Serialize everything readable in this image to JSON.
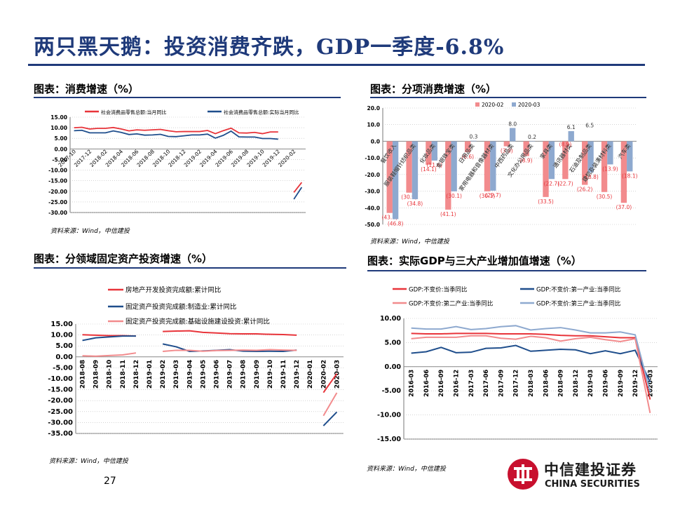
{
  "page": {
    "title": "两只黑天鹅：投资消费齐跌，GDP一季度-6.8%",
    "number": "27",
    "logo_cn": "中信建投证券",
    "logo_en": "CHINA SECURITIES"
  },
  "panels": [
    {
      "title": "图表：消费增速（%）",
      "source": "资料来源：Wind，中信建投"
    },
    {
      "title": "图表：分项消费增速（%）",
      "source": "资料来源：Wind，中信建投"
    },
    {
      "title": "图表：分领域固定资产投资增速（%）",
      "source": "资料来源：Wind，中信建投"
    },
    {
      "title": "图表：实际GDP与三大产业增加值增速（%）",
      "source": "资料来源：Wind，中信建投"
    }
  ],
  "chart_data": [
    {
      "type": "line",
      "title": "",
      "ylim": [
        -30,
        15
      ],
      "yticks": [
        "15.00",
        "10.00",
        "5.00",
        "0.00",
        "-5.00",
        "-10.00",
        "-15.00",
        "-20.00",
        "-25.00",
        "-30.00"
      ],
      "x": [
        "2017-10",
        "2017-11",
        "2017-12",
        "2018-01",
        "2018-02",
        "2018-03",
        "2018-04",
        "2018-05",
        "2018-06",
        "2018-07",
        "2018-08",
        "2018-09",
        "2018-10",
        "2018-11",
        "2018-12",
        "2019-01",
        "2019-02",
        "2019-03",
        "2019-04",
        "2019-05",
        "2019-06",
        "2019-07",
        "2019-08",
        "2019-09",
        "2019-10",
        "2019-11",
        "2019-12",
        "2020-01",
        "2020-02",
        "2020-03"
      ],
      "xtick_labels": [
        "2017-10",
        "2017-12",
        "2018-02",
        "2018-04",
        "2018-06",
        "2018-08",
        "2018-10",
        "2018-12",
        "2019-02",
        "2019-04",
        "2019-06",
        "2019-08",
        "2019-10",
        "2019-12",
        "2020-02"
      ],
      "legend_position": "top",
      "series": [
        {
          "name": "社会消费品零售总额:当月同比",
          "color": "#e8343a",
          "values": [
            10.0,
            10.2,
            9.4,
            9.7,
            9.7,
            10.1,
            9.4,
            8.5,
            9.0,
            8.8,
            9.0,
            9.2,
            8.6,
            8.1,
            8.2,
            8.2,
            8.2,
            8.7,
            7.2,
            8.6,
            9.8,
            7.6,
            7.5,
            7.8,
            7.2,
            8.0,
            8.0,
            null,
            -20.5,
            -15.8
          ]
        },
        {
          "name": "社会消费品零售总额:实际当月同比",
          "color": "#1f4e8c",
          "values": [
            8.6,
            8.8,
            7.6,
            7.6,
            7.6,
            8.5,
            7.8,
            6.8,
            7.1,
            6.5,
            6.6,
            6.9,
            5.9,
            5.8,
            6.2,
            6.6,
            6.6,
            7.0,
            5.1,
            6.4,
            8.4,
            5.7,
            5.6,
            5.6,
            4.9,
            4.9,
            4.6,
            null,
            -23.7,
            -18.1
          ]
        }
      ]
    },
    {
      "type": "bar",
      "title": "",
      "ylim": [
        -50,
        20
      ],
      "yticks": [
        "20.0",
        "10.0",
        "0.0",
        "-10.0",
        "-20.0",
        "-30.0",
        "-40.0",
        "-50.0"
      ],
      "categories": [
        "餐饮收入",
        "服装鞋帽针纺织品类",
        "化妆品类",
        "金银珠宝类",
        "日用品类",
        "家用电器和音像器材类",
        "中西药品类",
        "文化办公用品类",
        "家具类",
        "通讯器材类",
        "石油及制品类",
        "建筑及装潢材料类",
        "汽车类"
      ],
      "legend_position": "top",
      "series": [
        {
          "name": "2020-02",
          "color": "#f28b8d",
          "values": [
            -43.1,
            -30.9,
            -14.1,
            -41.1,
            -6.6,
            -30.1,
            -3.0,
            -8.9,
            -33.5,
            -22.7,
            -26.2,
            -30.5,
            -37.0
          ],
          "labels": [
            "(43.1)",
            "(30.9)",
            "(14.1)",
            "(41.1)",
            "(6.6)",
            "(30.1)",
            "(3.0)",
            "(8.9)",
            "(33.5)",
            "(22.7)",
            "(26.2)",
            "(30.5)",
            "(37.0)"
          ]
        },
        {
          "name": "2020-03",
          "color": "#8ea9cf",
          "values": [
            -46.8,
            -34.8,
            -11.6,
            -30.1,
            0.3,
            -29.7,
            8.0,
            0.2,
            -22.7,
            6.1,
            -18.8,
            -13.9,
            -18.1
          ],
          "labels": [
            "(46.8)",
            "(34.8)",
            "(11.6)",
            "(30.1)",
            "0.3",
            "(29.7)",
            "8.0",
            "0.2",
            "(22.7)",
            "6.1",
            "(18.8)",
            "(13.9)",
            "(18.1)"
          ]
        }
      ],
      "extra_labels": [
        "(8.9)",
        "6.5"
      ]
    },
    {
      "type": "line",
      "title": "",
      "ylim": [
        -35,
        15
      ],
      "yticks": [
        "15.00",
        "10.00",
        "5.00",
        "0.00",
        "-5.00",
        "-10.00",
        "-15.00",
        "-20.00",
        "-25.00",
        "-30.00",
        "-35.00"
      ],
      "x": [
        "2018-08",
        "2018-09",
        "2018-10",
        "2018-11",
        "2018-12",
        "2019-01",
        "2019-02",
        "2019-03",
        "2019-04",
        "2019-05",
        "2019-06",
        "2019-07",
        "2019-08",
        "2019-09",
        "2019-10",
        "2019-11",
        "2019-12",
        "2020-01",
        "2020-02",
        "2020-03"
      ],
      "xtick_labels": [
        "2018-08",
        "2018-09",
        "2018-10",
        "2018-11",
        "2018-12",
        "2019-01",
        "2019-02",
        "2019-03",
        "2019-04",
        "2019-05",
        "2019-06",
        "2019-07",
        "2019-08",
        "2019-09",
        "2019-10",
        "2019-11",
        "2019-12",
        "2020-01",
        "2020-02",
        "2020-03"
      ],
      "legend_position": "top-left",
      "series": [
        {
          "name": "房地产开发投资完成额:累计同比",
          "color": "#e8343a",
          "values": [
            10.1,
            9.9,
            9.7,
            9.7,
            9.5,
            null,
            11.6,
            11.8,
            11.9,
            11.2,
            10.9,
            10.6,
            10.5,
            10.5,
            10.3,
            10.2,
            9.9,
            null,
            -16.3,
            -7.7
          ]
        },
        {
          "name": "固定资产投资完成额:制造业:累计同比",
          "color": "#1f4e8c",
          "values": [
            7.5,
            8.7,
            9.1,
            9.5,
            9.5,
            null,
            5.9,
            4.6,
            2.5,
            2.7,
            3.0,
            3.3,
            2.6,
            2.5,
            2.6,
            2.5,
            3.1,
            null,
            -31.5,
            -25.2
          ]
        },
        {
          "name": "固定资产投资完成额:基础设施建设投资:累计同比",
          "color": "#f28b8d",
          "values": [
            0.5,
            0.3,
            0.6,
            0.9,
            1.8,
            null,
            2.5,
            3.0,
            3.0,
            2.6,
            2.9,
            3.0,
            3.1,
            3.0,
            3.3,
            3.1,
            3.0,
            null,
            -26.9,
            -16.4
          ]
        }
      ]
    },
    {
      "type": "line",
      "title": "",
      "ylim": [
        -15,
        10
      ],
      "yticks": [
        "10.00",
        "5.00",
        "0.00",
        "-5.00",
        "-10.00",
        "-15.00"
      ],
      "x": [
        "2016-03",
        "2016-06",
        "2016-09",
        "2016-12",
        "2017-03",
        "2017-06",
        "2017-09",
        "2017-12",
        "2018-03",
        "2018-06",
        "2018-09",
        "2018-12",
        "2019-03",
        "2019-06",
        "2019-09",
        "2019-12",
        "2020-03"
      ],
      "xtick_labels": [
        "2016-03",
        "2016-06",
        "2016-09",
        "2016-12",
        "2017-03",
        "2017-06",
        "2017-09",
        "2017-12",
        "2018-03",
        "2018-06",
        "2018-09",
        "2018-12",
        "2019-03",
        "2019-06",
        "2019-09",
        "2019-12",
        "2020-03"
      ],
      "legend_position": "top",
      "series": [
        {
          "name": "GDP:不变价:当季同比",
          "color": "#e8343a",
          "values": [
            6.9,
            6.8,
            6.8,
            6.9,
            6.9,
            6.9,
            6.8,
            6.8,
            6.8,
            6.7,
            6.5,
            6.4,
            6.4,
            6.2,
            6.0,
            6.0,
            -6.8
          ]
        },
        {
          "name": "GDP:不变价:第一产业:当季同比",
          "color": "#1f4e8c",
          "values": [
            2.8,
            3.1,
            4.0,
            2.9,
            3.0,
            3.8,
            3.9,
            4.4,
            3.2,
            3.4,
            3.6,
            3.5,
            2.7,
            3.3,
            2.7,
            3.4,
            -3.2
          ]
        },
        {
          "name": "GDP:不变价:第二产业:当季同比",
          "color": "#f28b8d",
          "values": [
            5.8,
            6.1,
            6.1,
            6.1,
            6.4,
            6.4,
            5.9,
            5.7,
            6.3,
            6.0,
            5.3,
            5.8,
            6.1,
            5.6,
            5.2,
            5.8,
            -9.6
          ]
        },
        {
          "name": "GDP:不变价:第三产业:当季同比",
          "color": "#8ea9cf",
          "values": [
            8.0,
            7.8,
            7.8,
            8.3,
            7.7,
            7.9,
            8.3,
            8.5,
            7.6,
            7.9,
            8.1,
            7.6,
            7.0,
            7.0,
            7.2,
            6.6,
            -5.2
          ]
        }
      ]
    }
  ]
}
